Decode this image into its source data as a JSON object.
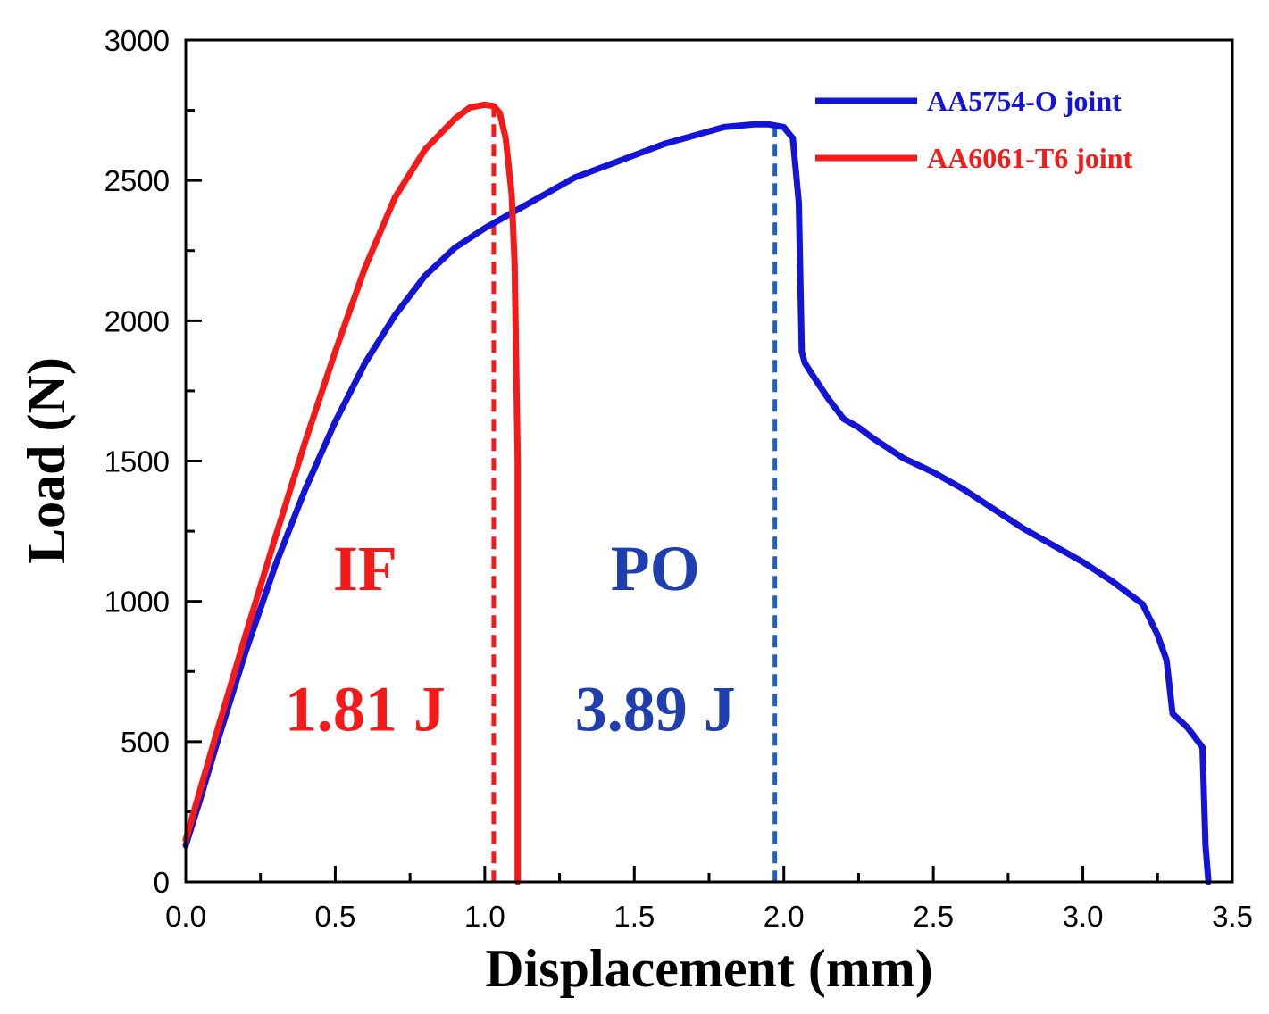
{
  "chart_data": {
    "type": "line",
    "title": "",
    "xlabel": "Displacement (mm)",
    "ylabel": "Load (N)",
    "xlim": [
      0.0,
      3.5
    ],
    "ylim": [
      0,
      3000
    ],
    "xticks": [
      "0.0",
      "0.5",
      "1.0",
      "1.5",
      "2.0",
      "2.5",
      "3.0",
      "3.5"
    ],
    "yticks": [
      "0",
      "500",
      "1000",
      "1500",
      "2000",
      "2500",
      "3000"
    ],
    "grid": false,
    "legend_position": "top-right",
    "series": [
      {
        "name": "AA5754-O joint",
        "color": "#1414d6",
        "x": [
          0.0,
          0.05,
          0.1,
          0.2,
          0.3,
          0.4,
          0.5,
          0.6,
          0.7,
          0.8,
          0.9,
          1.0,
          1.1,
          1.2,
          1.3,
          1.4,
          1.5,
          1.6,
          1.7,
          1.8,
          1.9,
          1.95,
          2.0,
          2.03,
          2.05,
          2.06,
          2.07,
          2.1,
          2.15,
          2.2,
          2.25,
          2.3,
          2.4,
          2.5,
          2.6,
          2.7,
          2.8,
          2.9,
          3.0,
          3.1,
          3.2,
          3.25,
          3.28,
          3.3,
          3.35,
          3.4,
          3.41,
          3.42
        ],
        "y": [
          130,
          300,
          480,
          820,
          1130,
          1400,
          1640,
          1850,
          2020,
          2160,
          2260,
          2330,
          2390,
          2450,
          2510,
          2550,
          2590,
          2630,
          2660,
          2690,
          2700,
          2700,
          2690,
          2650,
          2420,
          1890,
          1850,
          1800,
          1720,
          1650,
          1620,
          1580,
          1510,
          1460,
          1400,
          1330,
          1260,
          1200,
          1140,
          1070,
          990,
          880,
          790,
          600,
          550,
          480,
          130,
          0
        ]
      },
      {
        "name": "AA6061-T6 joint",
        "color": "#f41a1a",
        "x": [
          0.0,
          0.1,
          0.2,
          0.3,
          0.4,
          0.5,
          0.6,
          0.7,
          0.8,
          0.9,
          0.95,
          1.0,
          1.03,
          1.05,
          1.07,
          1.09,
          1.1,
          1.11,
          1.11
        ],
        "y": [
          150,
          520,
          880,
          1230,
          1570,
          1890,
          2190,
          2440,
          2610,
          2720,
          2760,
          2770,
          2765,
          2740,
          2650,
          2450,
          2200,
          1500,
          0
        ]
      }
    ],
    "drop_lines": [
      {
        "x": 1.03,
        "y": 2770,
        "color": "#f41a1a"
      },
      {
        "x": 1.97,
        "y": 2700,
        "color": "#1f5fc0"
      }
    ],
    "annotations": [
      {
        "text": "IF",
        "x": 0.6,
        "y": 1040,
        "color": "#f41a1a"
      },
      {
        "text": "1.81 J",
        "x": 0.6,
        "y": 540,
        "color": "#f41a1a"
      },
      {
        "text": "PO",
        "x": 1.57,
        "y": 1040,
        "color": "#1f3fb0"
      },
      {
        "text": "3.89 J",
        "x": 1.57,
        "y": 540,
        "color": "#1f3fb0"
      }
    ]
  }
}
